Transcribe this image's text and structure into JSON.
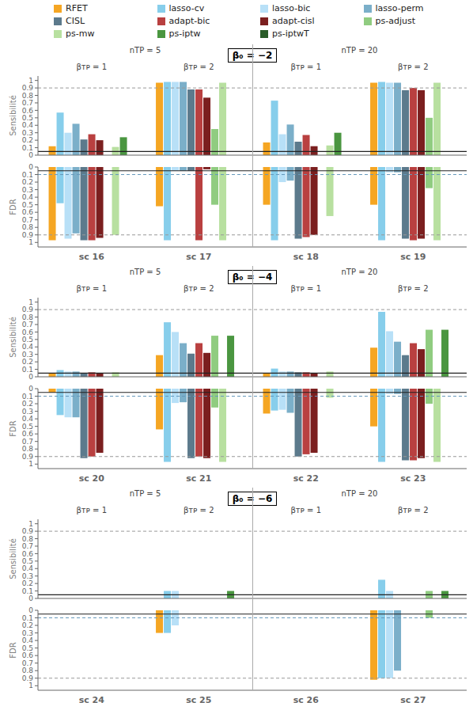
{
  "chart_data": [
    {
      "type": "bar",
      "title": "β₀ = −2",
      "y_label": "Sensibilité",
      "legend": "top",
      "grid": false,
      "tick_labels": "y",
      "categories": [
        "sc 16",
        "sc 17",
        "sc 18",
        "sc 19"
      ],
      "ylim": [
        0,
        1.06
      ],
      "yticks": [
        0,
        0.1,
        0.2,
        0.3,
        0.4,
        0.5,
        0.6,
        0.7,
        0.8,
        0.9,
        1
      ],
      "reference_lines": [
        {
          "value": 0.9,
          "color": "#999999",
          "line_style": "dashed"
        },
        {
          "value": 0.05,
          "color": "#222222",
          "line_style": "solid"
        }
      ],
      "annotations": [
        {
          "text": "nTP = 5",
          "categories": [
            "sc 16",
            "sc 17"
          ]
        },
        {
          "text": "nTP = 20",
          "categories": [
            "sc 18",
            "sc 19"
          ]
        },
        {
          "text": "βᴛᴘ = 1",
          "category": "sc 16"
        },
        {
          "text": "βᴛᴘ = 2",
          "category": "sc 17"
        },
        {
          "text": "βᴛᴘ = 1",
          "category": "sc 18"
        },
        {
          "text": "βᴛᴘ = 2",
          "category": "sc 19"
        }
      ],
      "series": [
        {
          "name": "RFET",
          "color": "#F5A623",
          "values": [
            0.12,
            0.97,
            0.17,
            0.97
          ]
        },
        {
          "name": "lasso-cv",
          "color": "#87CEEB",
          "values": [
            0.57,
            0.98,
            0.73,
            0.98
          ]
        },
        {
          "name": "lasso-bic",
          "color": "#B8E0F7",
          "values": [
            0.3,
            0.98,
            0.28,
            0.97
          ]
        },
        {
          "name": "lasso-perm",
          "color": "#7BAFC9",
          "values": [
            0.42,
            0.98,
            0.41,
            0.97
          ]
        },
        {
          "name": "CISL",
          "color": "#5C7A8C",
          "values": [
            0.21,
            0.88,
            0.18,
            0.87
          ]
        },
        {
          "name": "adapt-bic",
          "color": "#B94040",
          "values": [
            0.28,
            0.88,
            0.27,
            0.9
          ]
        },
        {
          "name": "adapt-cisl",
          "color": "#7B1F1F",
          "values": [
            0.2,
            0.77,
            0.12,
            0.87
          ]
        },
        {
          "name": "ps-adjust",
          "color": "#90CC80",
          "values": [
            0.0,
            0.35,
            0.0,
            0.5
          ]
        },
        {
          "name": "ps-mw",
          "color": "#B8E0A0",
          "values": [
            0.11,
            0.97,
            0.13,
            0.97
          ]
        },
        {
          "name": "ps-iptw",
          "color": "#4A9640",
          "values": [
            0.24,
            0.0,
            0.3,
            0.0
          ]
        },
        {
          "name": "ps-iptwT",
          "color": "#2A5C28",
          "values": [
            0.0,
            0.0,
            0.0,
            0.0
          ]
        }
      ]
    },
    {
      "type": "bar",
      "y_label": "FDR",
      "grid": false,
      "categories": [
        "sc 16",
        "sc 17",
        "sc 18",
        "sc 19"
      ],
      "ylim": [
        1.06,
        0
      ],
      "yticks": [
        0,
        0.1,
        0.2,
        0.3,
        0.4,
        0.5,
        0.6,
        0.7,
        0.8,
        0.9,
        1
      ],
      "reference_lines": [
        {
          "value": 0.9,
          "color": "#999999",
          "line_style": "dashed"
        },
        {
          "value": 0.1,
          "color": "#6699BB",
          "line_style": "dashed"
        },
        {
          "value": 0.05,
          "color": "#222222",
          "line_style": "solid"
        }
      ],
      "series": [
        {
          "name": "RFET",
          "color": "#F5A623",
          "values": [
            0.97,
            0.52,
            0.5,
            0.5
          ]
        },
        {
          "name": "lasso-cv",
          "color": "#87CEEB",
          "values": [
            0.48,
            0.97,
            0.97,
            0.97
          ]
        },
        {
          "name": "lasso-bic",
          "color": "#B8E0F7",
          "values": [
            0.95,
            0.05,
            0.2,
            0.07
          ]
        },
        {
          "name": "lasso-perm",
          "color": "#7BAFC9",
          "values": [
            0.88,
            0.05,
            0.18,
            0.07
          ]
        },
        {
          "name": "CISL",
          "color": "#5C7A8C",
          "values": [
            0.97,
            0.05,
            0.95,
            0.95
          ]
        },
        {
          "name": "adapt-bic",
          "color": "#B94040",
          "values": [
            0.97,
            0.97,
            0.93,
            0.97
          ]
        },
        {
          "name": "adapt-cisl",
          "color": "#7B1F1F",
          "values": [
            0.94,
            0.03,
            0.9,
            0.95
          ]
        },
        {
          "name": "ps-adjust",
          "color": "#90CC80",
          "values": [
            0.0,
            0.5,
            0.0,
            0.28
          ]
        },
        {
          "name": "ps-mw",
          "color": "#B8E0A0",
          "values": [
            0.9,
            0.97,
            0.65,
            0.97
          ]
        },
        {
          "name": "ps-iptw",
          "color": "#4A9640",
          "values": [
            0.0,
            0.0,
            0.0,
            0.0
          ]
        },
        {
          "name": "ps-iptwT",
          "color": "#2A5C28",
          "values": [
            0.0,
            0.0,
            0.0,
            0.0
          ]
        }
      ]
    },
    {
      "type": "bar",
      "title": "β₀ = −4",
      "y_label": "Sensibilité",
      "grid": false,
      "tick_labels": "y",
      "categories": [
        "sc 20",
        "sc 21",
        "sc 22",
        "sc 23"
      ],
      "ylim": [
        0,
        1.06
      ],
      "yticks": [
        0,
        0.1,
        0.2,
        0.3,
        0.4,
        0.5,
        0.6,
        0.7,
        0.8,
        0.9,
        1
      ],
      "reference_lines": [
        {
          "value": 0.9,
          "color": "#999999",
          "line_style": "dashed"
        },
        {
          "value": 0.05,
          "color": "#222222",
          "line_style": "solid"
        }
      ],
      "annotations": [
        {
          "text": "nTP = 5",
          "categories": [
            "sc 20",
            "sc 21"
          ]
        },
        {
          "text": "nTP = 20",
          "categories": [
            "sc 22",
            "sc 23"
          ]
        },
        {
          "text": "βᴛᴘ = 1",
          "category": "sc 20"
        },
        {
          "text": "βᴛᴘ = 2",
          "category": "sc 21"
        },
        {
          "text": "βᴛᴘ = 1",
          "category": "sc 22"
        },
        {
          "text": "βᴛᴘ = 2",
          "category": "sc 23"
        }
      ],
      "series": [
        {
          "name": "RFET",
          "color": "#F5A623",
          "values": [
            0.05,
            0.29,
            0.05,
            0.39
          ]
        },
        {
          "name": "lasso-cv",
          "color": "#87CEEB",
          "values": [
            0.09,
            0.73,
            0.11,
            0.87
          ]
        },
        {
          "name": "lasso-bic",
          "color": "#B8E0F7",
          "values": [
            0.07,
            0.6,
            0.07,
            0.61
          ]
        },
        {
          "name": "lasso-perm",
          "color": "#7BAFC9",
          "values": [
            0.07,
            0.45,
            0.07,
            0.47
          ]
        },
        {
          "name": "CISL",
          "color": "#5C7A8C",
          "values": [
            0.05,
            0.31,
            0.06,
            0.29
          ]
        },
        {
          "name": "adapt-bic",
          "color": "#B94040",
          "values": [
            0.06,
            0.45,
            0.06,
            0.45
          ]
        },
        {
          "name": "adapt-cisl",
          "color": "#7B1F1F",
          "values": [
            0.05,
            0.32,
            0.05,
            0.37
          ]
        },
        {
          "name": "ps-adjust",
          "color": "#90CC80",
          "values": [
            0.0,
            0.55,
            0.0,
            0.63
          ]
        },
        {
          "name": "ps-mw",
          "color": "#B8E0A0",
          "values": [
            0.06,
            0.0,
            0.07,
            0.0
          ]
        },
        {
          "name": "ps-iptw",
          "color": "#4A9640",
          "values": [
            0.0,
            0.55,
            0.0,
            0.63
          ]
        },
        {
          "name": "ps-iptwT",
          "color": "#2A5C28",
          "values": [
            0.0,
            0.0,
            0.0,
            0.0
          ]
        }
      ]
    },
    {
      "type": "bar",
      "y_label": "FDR",
      "grid": false,
      "categories": [
        "sc 20",
        "sc 21",
        "sc 22",
        "sc 23"
      ],
      "ylim": [
        1.06,
        0
      ],
      "yticks": [
        0,
        0.1,
        0.2,
        0.3,
        0.4,
        0.5,
        0.6,
        0.7,
        0.8,
        0.9,
        1
      ],
      "reference_lines": [
        {
          "value": 0.9,
          "color": "#999999",
          "line_style": "dashed"
        },
        {
          "value": 0.1,
          "color": "#6699BB",
          "line_style": "dashed"
        },
        {
          "value": 0.05,
          "color": "#222222",
          "line_style": "solid"
        }
      ],
      "series": [
        {
          "name": "RFET",
          "color": "#F5A623",
          "values": [
            0.05,
            0.54,
            0.33,
            0.5
          ]
        },
        {
          "name": "lasso-cv",
          "color": "#87CEEB",
          "values": [
            0.35,
            0.97,
            0.29,
            0.97
          ]
        },
        {
          "name": "lasso-bic",
          "color": "#B8E0F7",
          "values": [
            0.38,
            0.19,
            0.28,
            0.07
          ]
        },
        {
          "name": "lasso-perm",
          "color": "#7BAFC9",
          "values": [
            0.38,
            0.18,
            0.32,
            0.07
          ]
        },
        {
          "name": "CISL",
          "color": "#5C7A8C",
          "values": [
            0.92,
            0.92,
            0.9,
            0.95
          ]
        },
        {
          "name": "adapt-bic",
          "color": "#B94040",
          "values": [
            0.9,
            0.9,
            0.87,
            0.95
          ]
        },
        {
          "name": "adapt-cisl",
          "color": "#7B1F1F",
          "values": [
            0.85,
            0.92,
            0.85,
            0.92
          ]
        },
        {
          "name": "ps-adjust",
          "color": "#90CC80",
          "values": [
            0.0,
            0.25,
            0.0,
            0.2
          ]
        },
        {
          "name": "ps-mw",
          "color": "#B8E0A0",
          "values": [
            0.0,
            0.97,
            0.12,
            0.97
          ]
        },
        {
          "name": "ps-iptw",
          "color": "#4A9640",
          "values": [
            0.0,
            0.0,
            0.0,
            0.0
          ]
        },
        {
          "name": "ps-iptwT",
          "color": "#2A5C28",
          "values": [
            0.0,
            0.0,
            0.0,
            0.0
          ]
        }
      ]
    },
    {
      "type": "bar",
      "title": "β₀ = −6",
      "y_label": "Sensibilité",
      "grid": false,
      "tick_labels": "y",
      "categories": [
        "sc 24",
        "sc 25",
        "sc 26",
        "sc 27"
      ],
      "ylim": [
        0,
        1.06
      ],
      "yticks": [
        0,
        0.1,
        0.2,
        0.3,
        0.4,
        0.5,
        0.6,
        0.7,
        0.8,
        0.9,
        1
      ],
      "reference_lines": [
        {
          "value": 0.9,
          "color": "#999999",
          "line_style": "dashed"
        },
        {
          "value": 0.05,
          "color": "#222222",
          "line_style": "solid"
        }
      ],
      "annotations": [
        {
          "text": "nTP = 5",
          "categories": [
            "sc 24",
            "sc 25"
          ]
        },
        {
          "text": "nTP = 20",
          "categories": [
            "sc 26",
            "sc 27"
          ]
        },
        {
          "text": "βᴛᴘ = 1",
          "category": "sc 24"
        },
        {
          "text": "βᴛᴘ = 2",
          "category": "sc 25"
        },
        {
          "text": "βᴛᴘ = 1",
          "category": "sc 26"
        },
        {
          "text": "βᴛᴘ = 2",
          "category": "sc 27"
        }
      ],
      "series": [
        {
          "name": "RFET",
          "color": "#F5A623",
          "values": [
            0.0,
            0.0,
            0.0,
            0.0
          ]
        },
        {
          "name": "lasso-cv",
          "color": "#87CEEB",
          "values": [
            0.0,
            0.1,
            0.0,
            0.25
          ]
        },
        {
          "name": "lasso-bic",
          "color": "#B8E0F7",
          "values": [
            0.0,
            0.1,
            0.0,
            0.1
          ]
        },
        {
          "name": "lasso-perm",
          "color": "#7BAFC9",
          "values": [
            0.0,
            0.0,
            0.0,
            0.0
          ]
        },
        {
          "name": "CISL",
          "color": "#5C7A8C",
          "values": [
            0.0,
            0.0,
            0.0,
            0.0
          ]
        },
        {
          "name": "adapt-bic",
          "color": "#B94040",
          "values": [
            0.0,
            0.0,
            0.0,
            0.0
          ]
        },
        {
          "name": "adapt-cisl",
          "color": "#7B1F1F",
          "values": [
            0.0,
            0.0,
            0.0,
            0.0
          ]
        },
        {
          "name": "ps-adjust",
          "color": "#90CC80",
          "values": [
            0.0,
            0.0,
            0.0,
            0.1
          ]
        },
        {
          "name": "ps-mw",
          "color": "#B8E0A0",
          "values": [
            0.0,
            0.0,
            0.0,
            0.0
          ]
        },
        {
          "name": "ps-iptw",
          "color": "#4A9640",
          "values": [
            0.0,
            0.1,
            0.0,
            0.1
          ]
        },
        {
          "name": "ps-iptwT",
          "color": "#2A5C28",
          "values": [
            0.0,
            0.0,
            0.0,
            0.0
          ]
        }
      ]
    },
    {
      "type": "bar",
      "y_label": "FDR",
      "grid": false,
      "categories": [
        "sc 24",
        "sc 25",
        "sc 26",
        "sc 27"
      ],
      "ylim": [
        1.06,
        0
      ],
      "yticks": [
        0,
        0.1,
        0.2,
        0.3,
        0.4,
        0.5,
        0.6,
        0.7,
        0.8,
        0.9,
        1
      ],
      "reference_lines": [
        {
          "value": 0.9,
          "color": "#999999",
          "line_style": "dashed"
        },
        {
          "value": 0.1,
          "color": "#6699BB",
          "line_style": "dashed"
        },
        {
          "value": 0.05,
          "color": "#222222",
          "line_style": "solid"
        }
      ],
      "series": [
        {
          "name": "RFET",
          "color": "#F5A623",
          "values": [
            0.0,
            0.3,
            0.0,
            0.92
          ]
        },
        {
          "name": "lasso-cv",
          "color": "#87CEEB",
          "values": [
            0.0,
            0.3,
            0.0,
            0.9
          ]
        },
        {
          "name": "lasso-bic",
          "color": "#B8E0F7",
          "values": [
            0.0,
            0.2,
            0.0,
            0.9
          ]
        },
        {
          "name": "lasso-perm",
          "color": "#7BAFC9",
          "values": [
            0.0,
            0.0,
            0.0,
            0.8
          ]
        },
        {
          "name": "CISL",
          "color": "#5C7A8C",
          "values": [
            0.0,
            0.0,
            0.0,
            0.0
          ]
        },
        {
          "name": "adapt-bic",
          "color": "#B94040",
          "values": [
            0.0,
            0.0,
            0.0,
            0.0
          ]
        },
        {
          "name": "adapt-cisl",
          "color": "#7B1F1F",
          "values": [
            0.0,
            0.0,
            0.0,
            0.0
          ]
        },
        {
          "name": "ps-adjust",
          "color": "#90CC80",
          "values": [
            0.0,
            0.0,
            0.0,
            0.1
          ]
        },
        {
          "name": "ps-mw",
          "color": "#B8E0A0",
          "values": [
            0.0,
            0.0,
            0.0,
            0.0
          ]
        },
        {
          "name": "ps-iptw",
          "color": "#4A9640",
          "values": [
            0.0,
            0.0,
            0.0,
            0.0
          ]
        },
        {
          "name": "ps-iptwT",
          "color": "#2A5C28",
          "values": [
            0.0,
            0.0,
            0.0,
            0.0
          ]
        }
      ]
    }
  ]
}
